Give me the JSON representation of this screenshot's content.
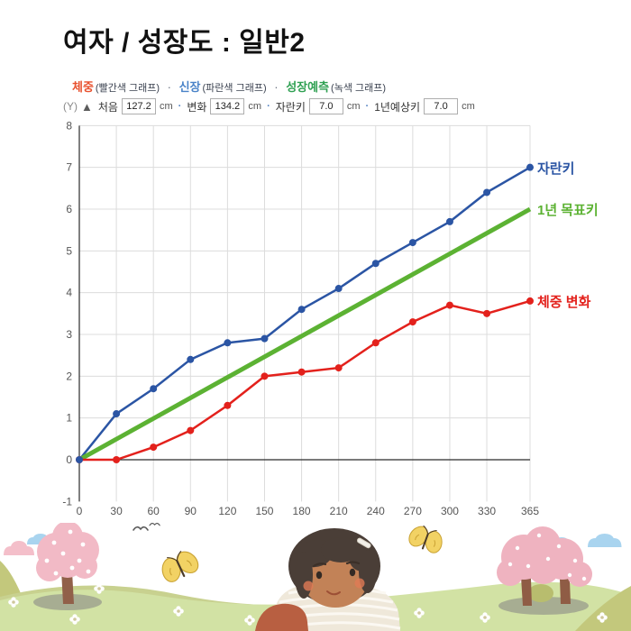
{
  "title": "여자 / 성장도 : 일반2",
  "legend": {
    "separator": "·",
    "items": [
      {
        "label": "체중",
        "note": "(빨간색 그래프)",
        "color": "#e8512e"
      },
      {
        "label": "신장",
        "note": "(파란색 그래프)",
        "color": "#4a83c8"
      },
      {
        "label": "성장예측",
        "note": "(녹색 그래프)",
        "color": "#2fa052"
      }
    ]
  },
  "controls": {
    "axis_indicator": "(Y)",
    "arrow_icon": "▲",
    "separator": "·",
    "fields": [
      {
        "label": "처음",
        "value": "127.2",
        "unit": "cm"
      },
      {
        "label": "변화",
        "value": "134.2",
        "unit": "cm"
      },
      {
        "label": "자란키",
        "value": "7.0",
        "unit": "cm"
      },
      {
        "label": "1년예상키",
        "value": "7.0",
        "unit": "cm"
      }
    ]
  },
  "chart_data": {
    "type": "line",
    "x": [
      0,
      30,
      60,
      90,
      120,
      150,
      180,
      210,
      240,
      270,
      300,
      330,
      365
    ],
    "xticks": [
      0,
      30,
      60,
      90,
      120,
      150,
      180,
      210,
      240,
      270,
      300,
      330,
      365
    ],
    "yticks": [
      8,
      7,
      6,
      5,
      4,
      3,
      2,
      1,
      0,
      -1
    ],
    "xlim": [
      0,
      365
    ],
    "ylim": [
      -1,
      8
    ],
    "grid": true,
    "legend_position": "right-of-line-ends",
    "series": [
      {
        "name": "자란키",
        "color": "#2b55a4",
        "marker": true,
        "values": [
          0,
          1.1,
          1.7,
          2.4,
          2.8,
          2.9,
          3.6,
          4.1,
          4.7,
          5.2,
          5.7,
          6.4,
          7.0
        ]
      },
      {
        "name": "1년 목표키",
        "color": "#5cb233",
        "marker": false,
        "line_width": 5,
        "points": [
          [
            0,
            0
          ],
          [
            365,
            6.0
          ]
        ]
      },
      {
        "name": "체중 변화",
        "color": "#e3211c",
        "marker": true,
        "values": [
          0,
          0,
          0.3,
          0.7,
          1.3,
          2.0,
          2.1,
          2.2,
          2.8,
          3.3,
          3.7,
          3.5,
          3.8
        ]
      }
    ]
  },
  "colors": {
    "grid": "#dcdcdc",
    "axis": "#2b2b2b",
    "tick_text": "#555555"
  }
}
